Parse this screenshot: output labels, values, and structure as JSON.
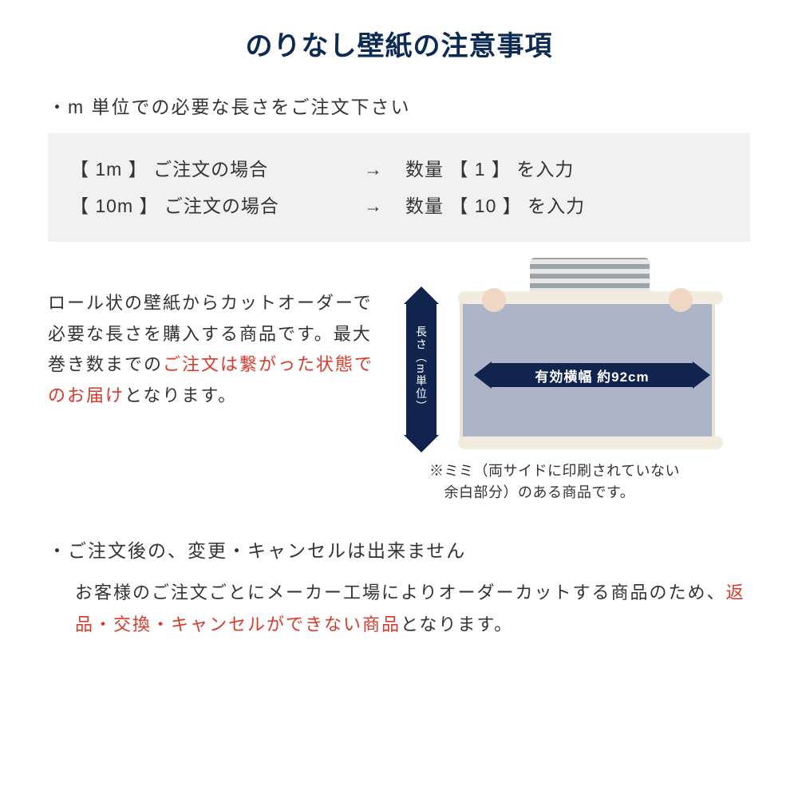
{
  "title": "のりなし壁紙の注意事項",
  "title_color": "#0d2a52",
  "section1": {
    "heading": "・m 単位での必要な長さをご注文下さい",
    "examples": [
      {
        "left": "【 1m 】 ご注文の場合",
        "arrow": "→",
        "right": "数量 【 1 】 を入力"
      },
      {
        "left": "【 10m 】 ご注文の場合",
        "arrow": "→",
        "right": "数量 【 10 】 を入力"
      }
    ],
    "example_bg": "#f1f1f1",
    "desc_pre": "ロール状の壁紙からカットオーダーで必要な長さを購入する商品です。最大巻き数までの",
    "desc_red": "ご注文は繋がった状態でのお届け",
    "desc_post": "となります。"
  },
  "diagram": {
    "vertical_label": "長さ（m単位）",
    "horizontal_label": "有効横幅 約92cm",
    "arrow_color": "#11244e",
    "wallpaper_color": "#aeb4c8",
    "note_line1": "※ミミ（両サイドに印刷されていない",
    "note_line2": "　余白部分）のある商品です。"
  },
  "section2": {
    "heading": "・ご注文後の、変更・キャンセルは出来ません",
    "body_pre": "お客様のご注文ごとにメーカー工場によりオーダーカットする商品のため、",
    "body_red": "返品・交換・キャンセルができない商品",
    "body_post": "となります。"
  },
  "colors": {
    "text": "#333333",
    "red": "#d93a2b",
    "navy": "#0d2a52"
  }
}
